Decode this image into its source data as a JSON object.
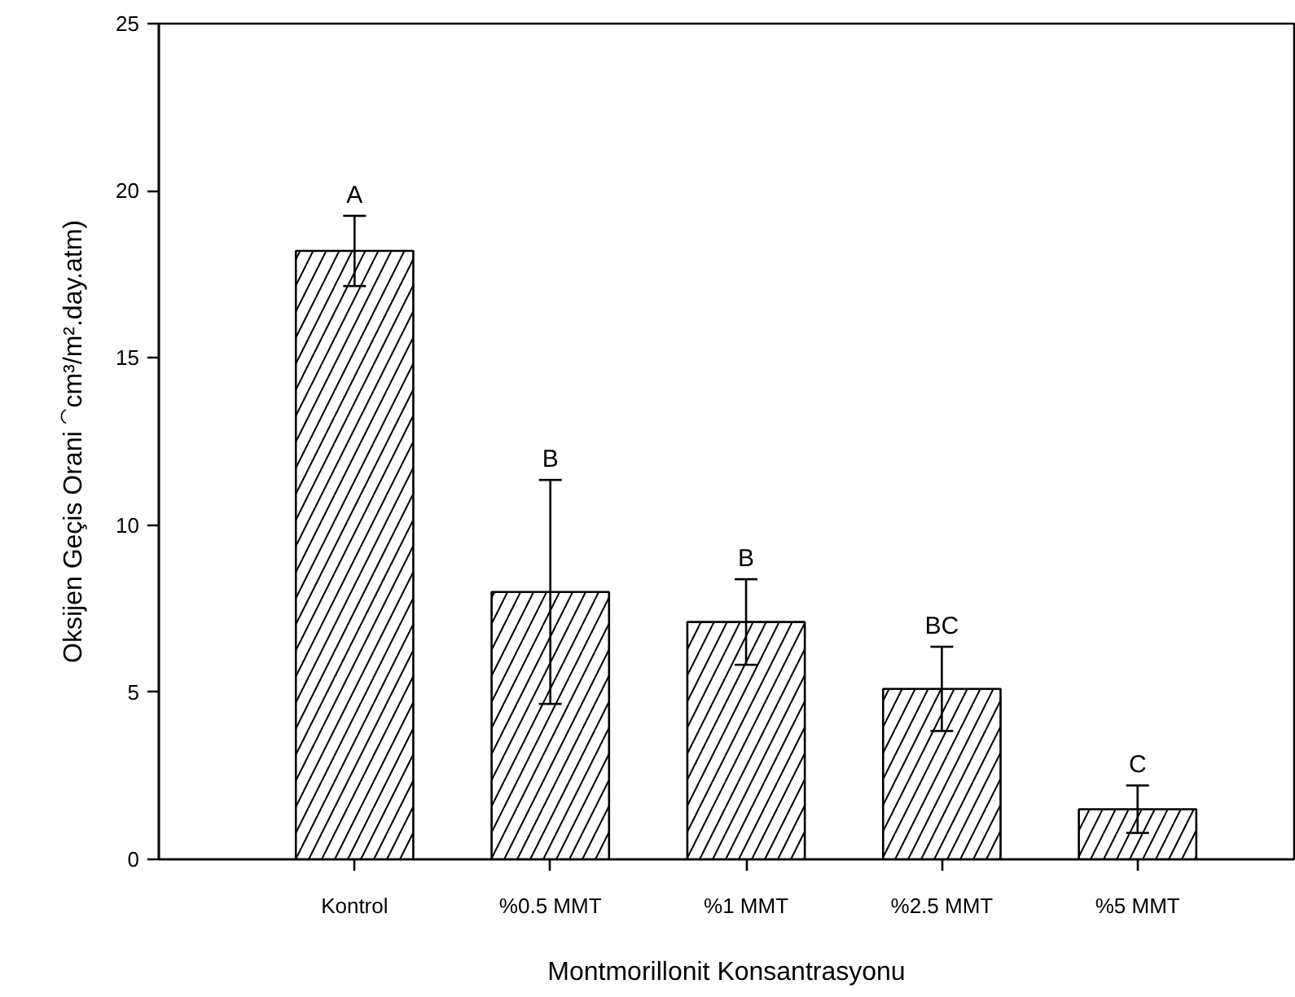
{
  "chart_data": {
    "type": "bar",
    "xlabel": "Montmorillonit Konsantrasyonu",
    "ylabel": "Oksijen Geçis Orani ⁀cm³/m².day.atm)",
    "categories": [
      "Kontrol",
      "%0.5 MMT",
      "%1 MMT",
      "%2.5 MMT",
      "%5 MMT"
    ],
    "values": [
      18.2,
      8.0,
      7.1,
      5.1,
      1.5
    ],
    "errors": [
      1.05,
      3.35,
      1.28,
      1.26,
      0.71
    ],
    "color": "#ffffff",
    "ylim": [
      0,
      25
    ],
    "yticks": [
      0,
      5,
      10,
      15,
      20,
      25
    ],
    "grid": false,
    "annotations": [
      "A",
      "B",
      "B",
      "BC",
      "C"
    ]
  }
}
